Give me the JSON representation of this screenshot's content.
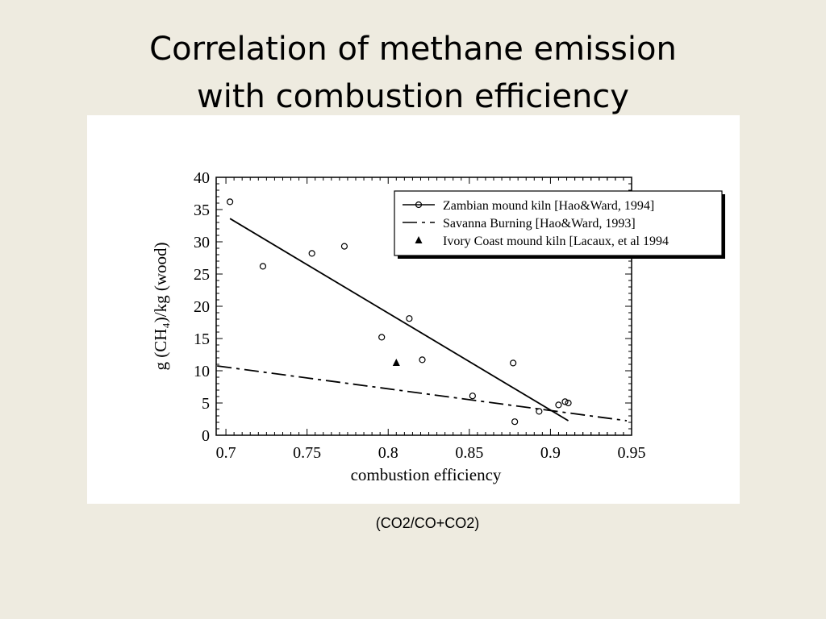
{
  "chart_data": {
    "type": "scatter",
    "title": [
      "Correlation of methane emission",
      "with combustion efficiency"
    ],
    "subtitle": "(CO2/CO+CO2)",
    "x_label": "combustion efficiency",
    "y_label": "g (CH₄)/kg (wood)",
    "xlim": [
      0.694,
      0.95
    ],
    "ylim": [
      0,
      40
    ],
    "xticks": [
      0.7,
      0.75,
      0.8,
      0.85,
      0.9,
      0.95
    ],
    "yticks": [
      0,
      5,
      10,
      15,
      20,
      25,
      30,
      35,
      40
    ],
    "legend": "upper right",
    "series": [
      {
        "name": "Zambian mound kiln [Hao&Ward, 1994]",
        "color": "#000000",
        "marker": "circle",
        "x": [
          0.7025,
          0.7228,
          0.753,
          0.773,
          0.796,
          0.813,
          0.821,
          0.852,
          0.877,
          0.878,
          0.893,
          0.905,
          0.909,
          0.911
        ],
        "values": [
          36.2,
          26.2,
          28.2,
          29.3,
          15.2,
          18.1,
          11.7,
          6.1,
          11.2,
          2.1,
          3.7,
          4.7,
          5.2,
          5.0
        ],
        "trend": {
          "x": [
            0.7025,
            0.911
          ],
          "values": [
            33.6,
            2.25
          ]
        }
      },
      {
        "name": "Savanna Burning [Hao&Ward, 1993]",
        "color": "#000000",
        "marker": "none",
        "line": "dashdot",
        "x": [
          0.6946,
          0.947
        ],
        "values": [
          10.75,
          2.25
        ]
      },
      {
        "name": "Ivory Coast mound kiln [Lacaux, et al 1994",
        "color": "#000000",
        "marker": "triangle",
        "x": [
          0.805
        ],
        "values": [
          11.25
        ]
      }
    ]
  }
}
